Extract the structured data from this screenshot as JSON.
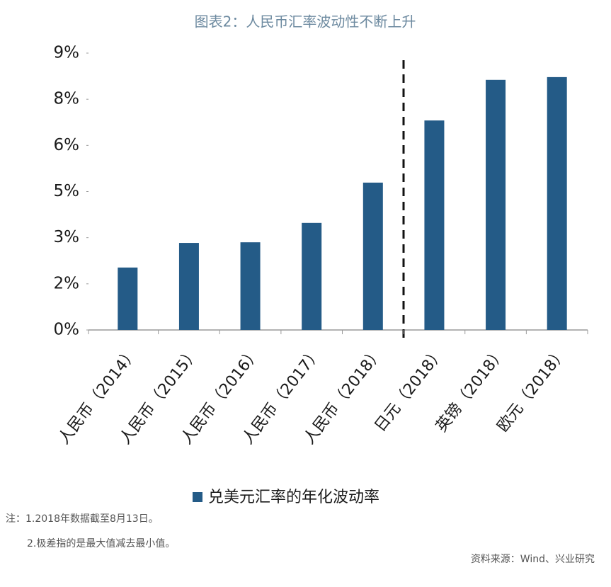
{
  "chart_data": {
    "type": "bar",
    "title": "图表2：人民币汇率波动性不断上升",
    "categories": [
      "人民币（2014）",
      "人民币（2015）",
      "人民币（2016）",
      "人民币（2017）",
      "人民币（2018）",
      "日元（2018）",
      "英镑（2018）",
      "欧元（2018）"
    ],
    "series": [
      {
        "name": "兑美元汇率的年化波动率",
        "color": "#245b87",
        "values": [
          2.03,
          2.83,
          2.85,
          3.48,
          4.79,
          6.81,
          8.13,
          8.22
        ]
      }
    ],
    "ylim": [
      0,
      9
    ],
    "yticks": [
      {
        "value": 0,
        "label": "0%"
      },
      {
        "value": 1.5,
        "label": "2%"
      },
      {
        "value": 3,
        "label": "3%"
      },
      {
        "value": 4.5,
        "label": "5%"
      },
      {
        "value": 6,
        "label": "6%"
      },
      {
        "value": 7.5,
        "label": "8%"
      },
      {
        "value": 9,
        "label": "9%"
      }
    ],
    "grid": false,
    "legend": "bottom",
    "notes": [
      "注：1.2018年数据截至8月13日。",
      "2.极差指的是最大值减去最小值。"
    ],
    "source": "资料来源：Wind、兴业研究"
  }
}
